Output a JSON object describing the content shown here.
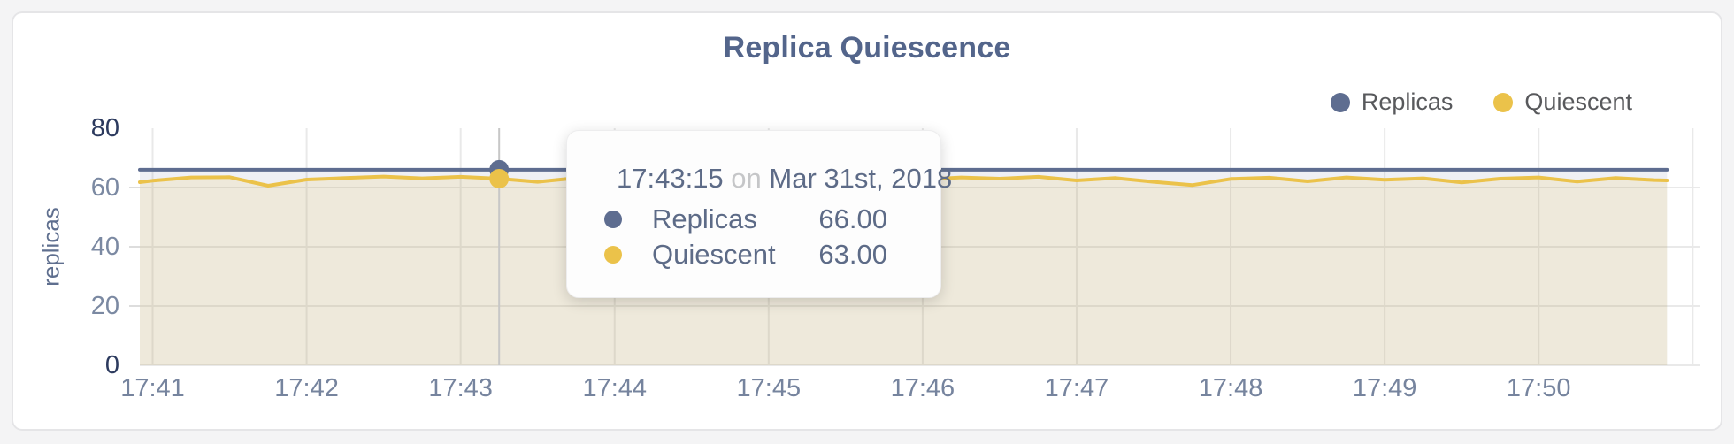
{
  "chart_data": {
    "type": "area",
    "title": "Replica Quiescence",
    "ylabel": "replicas",
    "ylim": [
      0,
      80
    ],
    "grid_color": "#e9e9e9",
    "crosshair_color": "#c7c7c7",
    "grid_y": [
      0,
      20,
      40,
      60
    ],
    "y_ticks": [
      {
        "label": "80",
        "value": 80,
        "strong": true
      },
      {
        "label": "60",
        "value": 60,
        "strong": false
      },
      {
        "label": "40",
        "value": 40,
        "strong": false
      },
      {
        "label": "20",
        "value": 20,
        "strong": false
      },
      {
        "label": "0",
        "value": 0,
        "strong": true
      }
    ],
    "x_ticks": [
      {
        "time": "17:41",
        "label": "17:41"
      },
      {
        "time": "17:42",
        "label": "17:42"
      },
      {
        "time": "17:43",
        "label": "17:43"
      },
      {
        "time": "17:44",
        "label": "17:44"
      },
      {
        "time": "17:45",
        "label": "17:45"
      },
      {
        "time": "17:46",
        "label": "17:46"
      },
      {
        "time": "17:47",
        "label": "17:47"
      },
      {
        "time": "17:48",
        "label": "17:48"
      },
      {
        "time": "17:49",
        "label": "17:49"
      },
      {
        "time": "17:50",
        "label": "17:50"
      },
      {
        "time": "17:51",
        "label": ""
      }
    ],
    "x_domain": [
      "17:40:55",
      "17:51:03"
    ],
    "legend_position": "top-right",
    "times": [
      "17:40:55",
      "17:41:00",
      "17:41:15",
      "17:41:30",
      "17:41:45",
      "17:42:00",
      "17:42:15",
      "17:42:30",
      "17:42:45",
      "17:43:00",
      "17:43:15",
      "17:43:30",
      "17:43:45",
      "17:44:00",
      "17:44:15",
      "17:44:30",
      "17:44:45",
      "17:45:00",
      "17:45:15",
      "17:45:30",
      "17:45:45",
      "17:46:00",
      "17:46:15",
      "17:46:30",
      "17:46:45",
      "17:47:00",
      "17:47:15",
      "17:47:30",
      "17:47:45",
      "17:48:00",
      "17:48:15",
      "17:48:30",
      "17:48:45",
      "17:49:00",
      "17:49:15",
      "17:49:30",
      "17:49:45",
      "17:50:00",
      "17:50:15",
      "17:50:30",
      "17:50:45",
      "17:50:50"
    ],
    "series": [
      {
        "name": "Replicas",
        "color": "#5e6d90",
        "fill": "rgba(94,109,144,0.10)",
        "values": [
          66,
          66,
          66,
          66,
          66,
          66,
          66,
          66,
          66,
          66,
          66,
          66,
          66,
          66,
          66,
          66,
          66,
          66,
          66,
          66,
          66,
          66,
          66,
          66,
          66,
          66,
          66,
          66,
          66,
          66,
          66,
          66,
          66,
          66,
          66,
          66,
          66,
          66,
          66,
          66,
          66,
          66
        ]
      },
      {
        "name": "Quiescent",
        "color": "#ebc24a",
        "fill": "rgba(235,194,74,0.14)",
        "values": [
          61.8,
          62.3,
          63.4,
          63.5,
          60.6,
          62.7,
          63.2,
          63.7,
          63.1,
          63.6,
          63.0,
          61.9,
          63.2,
          63.4,
          62.8,
          63.3,
          61.6,
          62.9,
          63.4,
          63.1,
          63.5,
          62.7,
          63.4,
          63.0,
          63.6,
          62.4,
          63.2,
          61.9,
          60.8,
          62.9,
          63.3,
          62.1,
          63.4,
          62.6,
          63.1,
          61.7,
          63.0,
          63.4,
          62.0,
          63.2,
          62.5,
          62.4
        ]
      }
    ],
    "hover": {
      "time": "17:43:15",
      "connector": "on",
      "date": "Mar 31st, 2018",
      "rows": [
        {
          "label": "Replicas",
          "value": "66.00",
          "color": "#5e6d90"
        },
        {
          "label": "Quiescent",
          "value": "63.00",
          "color": "#ebc24a"
        }
      ]
    }
  }
}
